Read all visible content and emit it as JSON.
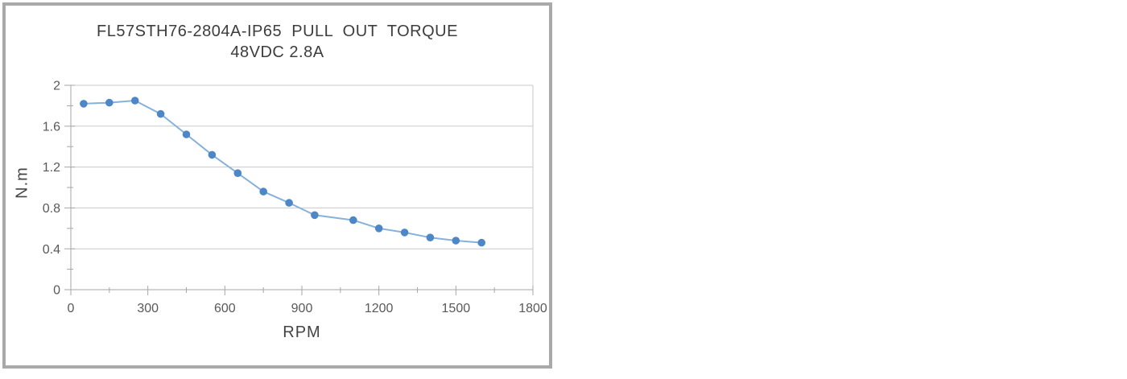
{
  "frame": {
    "border_color": "#a9a9a9",
    "background": "#ffffff"
  },
  "chart_data": {
    "type": "line",
    "title_line1": "FL57STH76-2804A-IP65  PULL  OUT  TORQUE",
    "title_line2": "48VDC 2.8A",
    "xlabel": "RPM",
    "ylabel": "N.m",
    "xlim": [
      0,
      1800
    ],
    "ylim": [
      0,
      2
    ],
    "x_major_ticks": [
      0,
      300,
      600,
      900,
      1200,
      1500,
      1800
    ],
    "x_minor_step": 150,
    "y_major_ticks": [
      0,
      0.4,
      0.8,
      1.2,
      1.6,
      2
    ],
    "y_minor_step": 0.2,
    "grid": "horizontal-only",
    "legend": "none",
    "series": [
      {
        "name": "pull-out-torque",
        "x": [
          50,
          150,
          250,
          350,
          450,
          550,
          650,
          750,
          850,
          950,
          1100,
          1200,
          1300,
          1400,
          1500,
          1600
        ],
        "y": [
          1.82,
          1.83,
          1.85,
          1.72,
          1.52,
          1.32,
          1.14,
          0.96,
          0.85,
          0.73,
          0.68,
          0.6,
          0.56,
          0.51,
          0.48,
          0.46
        ]
      }
    ],
    "colors": {
      "line": "#86b1da",
      "marker": "#4d87c7",
      "grid": "#c9c9c9",
      "axis": "#a6a6a6",
      "tick_text": "#595959",
      "title_text": "#3d3d3d"
    }
  }
}
